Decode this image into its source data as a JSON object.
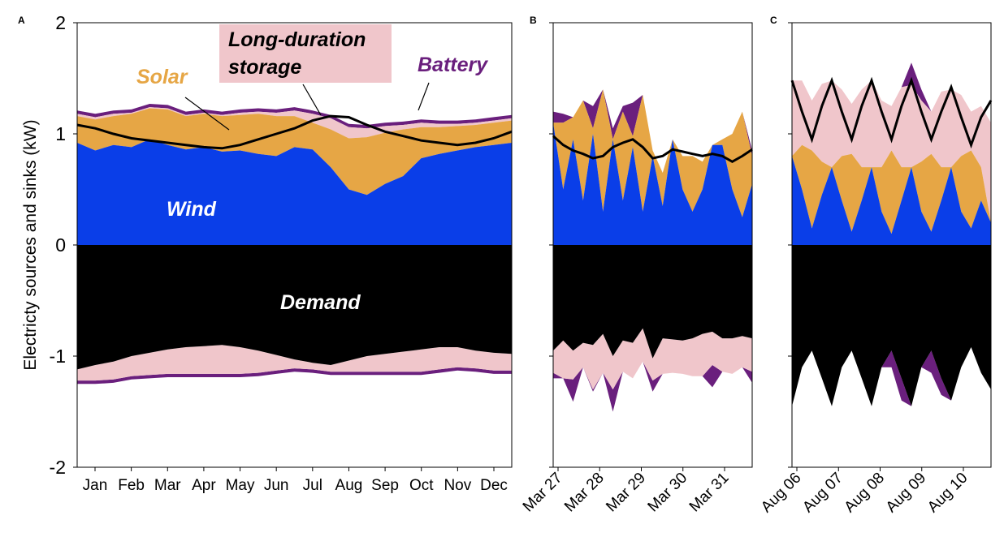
{
  "colors": {
    "wind": "#0a3ee8",
    "solar": "#e6a645",
    "battery": "#6a1f7d",
    "long_duration_storage": "#f0c6cb",
    "demand": "#000000",
    "demand_line": "#000000"
  },
  "figure": {
    "ylabel": "Electricty sources and sinks (kW)"
  },
  "chart_data": [
    {
      "panel": "A",
      "type": "area",
      "ylim": [
        -2,
        2
      ],
      "yticks": [
        -2,
        -1,
        0,
        1,
        2
      ],
      "ytick_labels": [
        "-2",
        "-1",
        "0",
        "1",
        "2"
      ],
      "xtick_labels": [
        "Jan",
        "Feb",
        "Mar",
        "Apr",
        "May",
        "Jun",
        "Jul",
        "Aug",
        "Sep",
        "Oct",
        "Nov",
        "Dec"
      ],
      "annotations": {
        "solar": "Solar",
        "long_duration_storage": "Long-duration storage",
        "battery": "Battery",
        "wind": "Wind",
        "demand": "Demand"
      },
      "x": [
        0,
        1,
        2,
        3,
        4,
        5,
        6,
        7,
        8,
        9,
        10,
        11,
        12,
        13,
        14,
        15,
        16,
        17,
        18,
        19,
        20,
        21,
        22,
        23,
        24
      ],
      "series": [
        {
          "key": "wind",
          "values": [
            0.92,
            0.85,
            0.9,
            0.88,
            0.95,
            0.9,
            0.86,
            0.88,
            0.84,
            0.85,
            0.82,
            0.8,
            0.88,
            0.86,
            0.7,
            0.5,
            0.45,
            0.55,
            0.62,
            0.78,
            0.82,
            0.85,
            0.88,
            0.9,
            0.92
          ]
        },
        {
          "key": "solar",
          "values": [
            0.24,
            0.28,
            0.26,
            0.3,
            0.28,
            0.32,
            0.3,
            0.3,
            0.32,
            0.32,
            0.36,
            0.36,
            0.28,
            0.24,
            0.34,
            0.46,
            0.52,
            0.46,
            0.42,
            0.28,
            0.24,
            0.22,
            0.2,
            0.2,
            0.2
          ]
        },
        {
          "key": "long_duration_storage",
          "values": [
            0.02,
            0.02,
            0.02,
            0.01,
            0.01,
            0.01,
            0.01,
            0.01,
            0.01,
            0.02,
            0.02,
            0.03,
            0.05,
            0.08,
            0.1,
            0.1,
            0.08,
            0.06,
            0.04,
            0.04,
            0.03,
            0.02,
            0.02,
            0.02,
            0.02
          ]
        },
        {
          "key": "battery",
          "values": [
            0.03,
            0.03,
            0.03,
            0.03,
            0.03,
            0.03,
            0.03,
            0.03,
            0.03,
            0.03,
            0.03,
            0.03,
            0.03,
            0.03,
            0.03,
            0.03,
            0.03,
            0.03,
            0.03,
            0.03,
            0.03,
            0.03,
            0.03,
            0.03,
            0.03
          ]
        },
        {
          "key": "demand",
          "values": [
            -1.12,
            -1.08,
            -1.05,
            -1.0,
            -0.97,
            -0.94,
            -0.92,
            -0.91,
            -0.9,
            -0.92,
            -0.95,
            -0.99,
            -1.03,
            -1.06,
            -1.08,
            -1.04,
            -1.0,
            -0.98,
            -0.96,
            -0.94,
            -0.92,
            -0.92,
            -0.95,
            -0.97,
            -0.98
          ]
        },
        {
          "key": "long_duration_storage_charge",
          "values": [
            -0.1,
            -0.14,
            -0.16,
            -0.18,
            -0.2,
            -0.22,
            -0.24,
            -0.25,
            -0.26,
            -0.24,
            -0.2,
            -0.14,
            -0.08,
            -0.06,
            -0.06,
            -0.1,
            -0.14,
            -0.16,
            -0.18,
            -0.2,
            -0.2,
            -0.18,
            -0.16,
            -0.16,
            -0.15
          ]
        },
        {
          "key": "battery_charge",
          "values": [
            -0.03,
            -0.03,
            -0.03,
            -0.03,
            -0.03,
            -0.03,
            -0.03,
            -0.03,
            -0.03,
            -0.03,
            -0.03,
            -0.03,
            -0.03,
            -0.03,
            -0.03,
            -0.03,
            -0.03,
            -0.03,
            -0.03,
            -0.03,
            -0.03,
            -0.03,
            -0.03,
            -0.03,
            -0.03
          ]
        },
        {
          "key": "demand_line",
          "values": [
            1.08,
            1.05,
            1.0,
            0.96,
            0.94,
            0.92,
            0.9,
            0.88,
            0.87,
            0.9,
            0.95,
            1.0,
            1.05,
            1.12,
            1.16,
            1.15,
            1.08,
            1.02,
            0.98,
            0.94,
            0.92,
            0.9,
            0.92,
            0.96,
            1.02
          ]
        }
      ]
    },
    {
      "panel": "B",
      "type": "area",
      "ylim": [
        -2,
        2
      ],
      "yticks": [
        -2,
        -1,
        0,
        1,
        2
      ],
      "xtick_labels": [
        "Mar 27",
        "Mar 28",
        "Mar 29",
        "Mar 30",
        "Mar 31"
      ],
      "x": [
        0,
        1,
        2,
        3,
        4,
        5,
        6,
        7,
        8,
        9,
        10,
        11,
        12,
        13,
        14,
        15,
        16,
        17,
        18,
        19,
        20
      ],
      "series": [
        {
          "key": "wind",
          "values": [
            1.1,
            0.5,
            0.95,
            0.4,
            1.0,
            0.3,
            0.95,
            0.4,
            0.88,
            0.3,
            0.8,
            0.35,
            0.95,
            0.5,
            0.3,
            0.5,
            0.9,
            0.9,
            0.5,
            0.25,
            0.55
          ]
        },
        {
          "key": "solar",
          "values": [
            0.0,
            0.6,
            0.2,
            0.9,
            0.05,
            1.1,
            0.0,
            0.8,
            0.1,
            1.05,
            0.05,
            0.3,
            0.0,
            0.3,
            0.5,
            0.25,
            0.0,
            0.05,
            0.5,
            0.95,
            0.25
          ]
        },
        {
          "key": "long_duration_storage",
          "values": [
            0.0,
            0.0,
            0.0,
            0.0,
            0.0,
            0.0,
            0.0,
            0.0,
            0.0,
            0.0,
            0.0,
            0.0,
            0.0,
            0.0,
            0.0,
            0.0,
            0.0,
            0.0,
            0.0,
            0.0,
            0.0
          ]
        },
        {
          "key": "battery",
          "values": [
            0.1,
            0.08,
            0.0,
            0.0,
            0.2,
            0.0,
            0.1,
            0.05,
            0.3,
            0.0,
            0.0,
            0.0,
            0.0,
            0.0,
            0.0,
            0.0,
            0.0,
            0.0,
            0.0,
            0.0,
            0.05
          ]
        },
        {
          "key": "demand",
          "values": [
            -0.95,
            -0.86,
            -0.95,
            -0.88,
            -0.9,
            -0.8,
            -1.0,
            -0.86,
            -0.88,
            -0.75,
            -1.02,
            -0.84,
            -0.85,
            -0.86,
            -0.84,
            -0.8,
            -0.78,
            -0.84,
            -0.84,
            -0.82,
            -0.84
          ]
        },
        {
          "key": "long_duration_storage_charge",
          "values": [
            -0.2,
            -0.34,
            -0.26,
            -0.22,
            -0.4,
            -0.35,
            -0.3,
            -0.28,
            -0.32,
            -0.3,
            -0.2,
            -0.32,
            -0.3,
            -0.3,
            -0.34,
            -0.38,
            -0.3,
            -0.3,
            -0.32,
            -0.28,
            -0.3
          ]
        },
        {
          "key": "battery_charge",
          "values": [
            -0.05,
            0.0,
            -0.2,
            0.0,
            -0.02,
            0.0,
            -0.2,
            0.0,
            0.0,
            0.0,
            -0.1,
            0.0,
            0.0,
            0.0,
            0.0,
            0.0,
            -0.2,
            0.0,
            0.0,
            0.0,
            -0.1
          ]
        },
        {
          "key": "demand_line",
          "values": [
            0.98,
            0.9,
            0.85,
            0.82,
            0.78,
            0.8,
            0.88,
            0.92,
            0.95,
            0.88,
            0.78,
            0.8,
            0.86,
            0.84,
            0.82,
            0.8,
            0.82,
            0.8,
            0.75,
            0.8,
            0.86
          ]
        }
      ]
    },
    {
      "panel": "C",
      "type": "area",
      "ylim": [
        -2,
        2
      ],
      "yticks": [
        -2,
        -1,
        0,
        1,
        2
      ],
      "xtick_labels": [
        "Aug 06",
        "Aug 07",
        "Aug 08",
        "Aug 09",
        "Aug 10"
      ],
      "x": [
        0,
        1,
        2,
        3,
        4,
        5,
        6,
        7,
        8,
        9,
        10,
        11,
        12,
        13,
        14,
        15,
        16,
        17,
        18,
        19,
        20
      ],
      "series": [
        {
          "key": "wind",
          "values": [
            0.8,
            0.5,
            0.15,
            0.45,
            0.7,
            0.4,
            0.12,
            0.4,
            0.7,
            0.3,
            0.1,
            0.4,
            0.7,
            0.3,
            0.12,
            0.4,
            0.7,
            0.3,
            0.15,
            0.4,
            0.2
          ]
        },
        {
          "key": "solar",
          "values": [
            0.0,
            0.4,
            0.7,
            0.3,
            0.0,
            0.4,
            0.7,
            0.3,
            0.0,
            0.4,
            0.75,
            0.3,
            0.0,
            0.45,
            0.7,
            0.3,
            0.0,
            0.5,
            0.7,
            0.3,
            0.0
          ]
        },
        {
          "key": "long_duration_storage",
          "values": [
            0.68,
            0.58,
            0.45,
            0.7,
            0.78,
            0.6,
            0.45,
            0.7,
            0.78,
            0.6,
            0.4,
            0.72,
            0.74,
            0.55,
            0.38,
            0.68,
            0.7,
            0.55,
            0.35,
            0.55,
            0.9
          ]
        },
        {
          "key": "battery",
          "values": [
            0.0,
            0.0,
            0.0,
            0.0,
            0.0,
            0.0,
            0.0,
            0.0,
            0.0,
            0.0,
            0.0,
            0.0,
            0.2,
            0.1,
            0.0,
            0.0,
            0.0,
            0.0,
            0.0,
            0.0,
            0.0
          ]
        },
        {
          "key": "demand",
          "values": [
            -1.45,
            -1.1,
            -0.95,
            -1.2,
            -1.45,
            -1.1,
            -0.95,
            -1.2,
            -1.45,
            -1.1,
            -0.95,
            -1.2,
            -1.45,
            -1.1,
            -0.95,
            -1.2,
            -1.4,
            -1.1,
            -0.92,
            -1.15,
            -1.3
          ]
        },
        {
          "key": "long_duration_storage_charge",
          "values": [
            0,
            0,
            0,
            0,
            0,
            0,
            0,
            0,
            0,
            0,
            0,
            0,
            0,
            0,
            0,
            0,
            0,
            0,
            0,
            0,
            0
          ]
        },
        {
          "key": "battery_charge",
          "values": [
            0,
            0,
            0,
            0,
            0,
            0,
            0,
            0,
            0,
            0,
            -0.15,
            -0.2,
            0,
            0,
            -0.2,
            -0.15,
            0,
            0,
            0,
            0,
            0
          ]
        },
        {
          "key": "demand_line",
          "values": [
            1.48,
            1.2,
            0.95,
            1.25,
            1.48,
            1.2,
            0.95,
            1.25,
            1.48,
            1.2,
            0.95,
            1.25,
            1.48,
            1.2,
            0.95,
            1.2,
            1.42,
            1.15,
            0.9,
            1.15,
            1.3
          ]
        }
      ]
    }
  ]
}
